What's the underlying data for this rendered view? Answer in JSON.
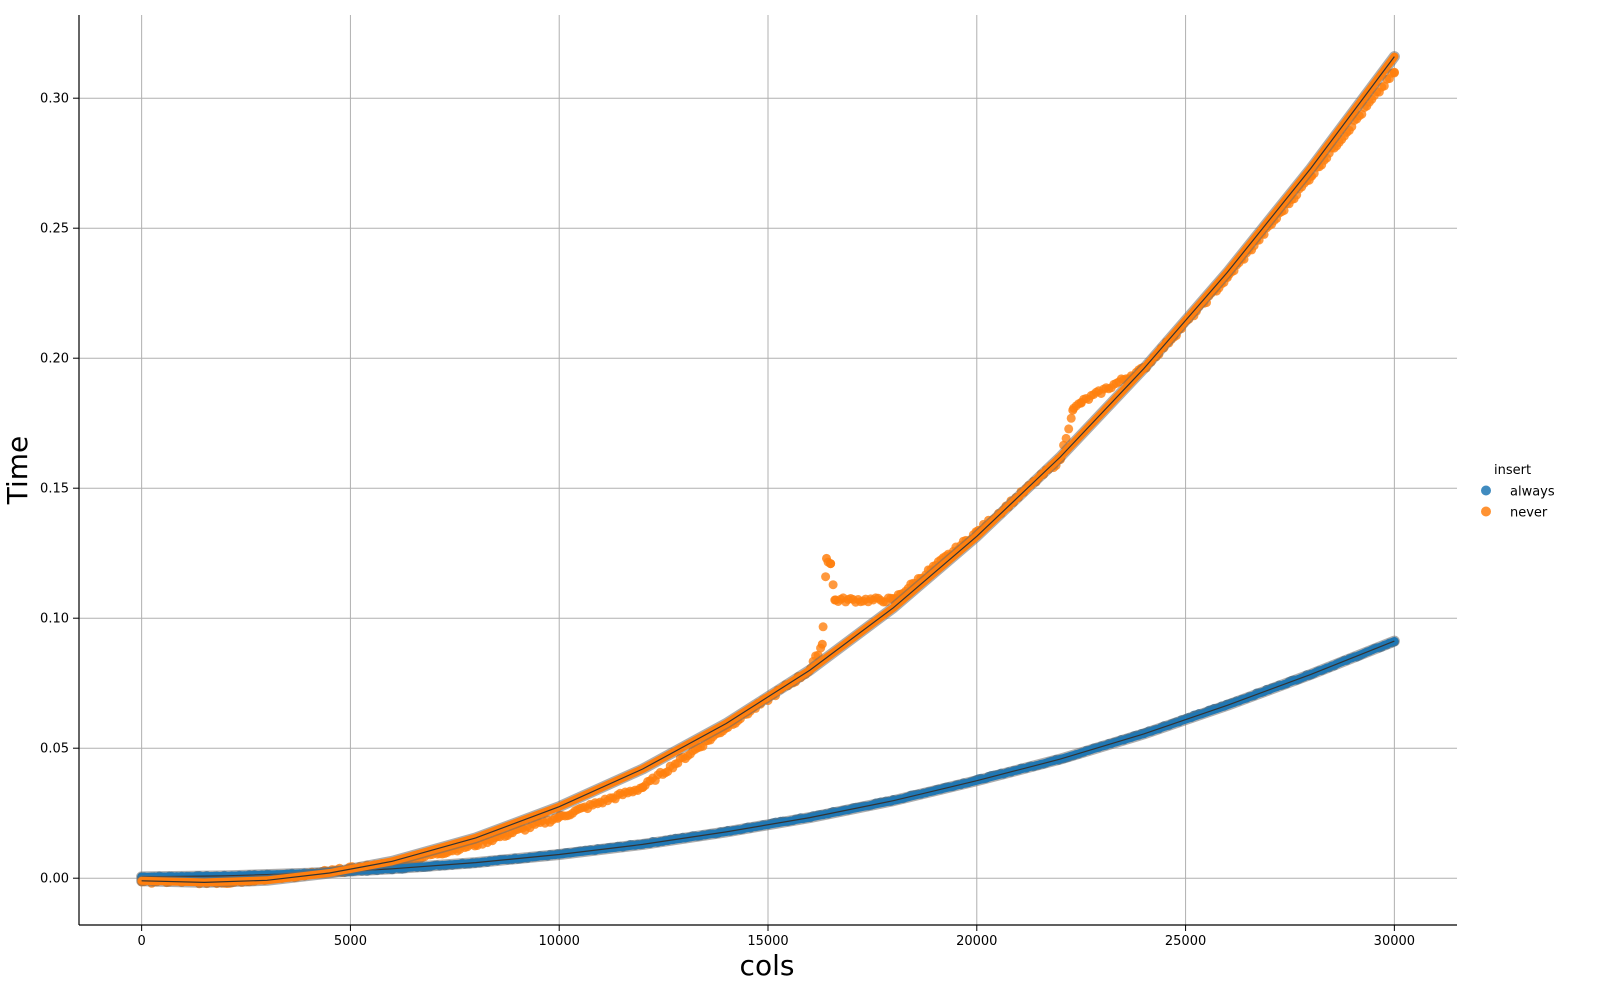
{
  "chart_data": {
    "type": "scatter",
    "xlabel": "cols",
    "ylabel": "Time",
    "xlim": [
      -1500,
      31500
    ],
    "ylim": [
      -0.018,
      0.332
    ],
    "x_ticks": [
      0,
      5000,
      10000,
      15000,
      20000,
      25000,
      30000
    ],
    "x_tick_labels": [
      "0",
      "5000",
      "10000",
      "15000",
      "20000",
      "25000",
      "30000"
    ],
    "y_ticks": [
      0.0,
      0.05,
      0.1,
      0.15,
      0.2,
      0.25,
      0.3
    ],
    "y_tick_labels": [
      "0.00",
      "0.05",
      "0.10",
      "0.15",
      "0.20",
      "0.25",
      "0.30"
    ],
    "grid": true,
    "legend": {
      "title": "insert",
      "placement": "right",
      "entries": [
        {
          "label": "always",
          "color": "#1f77b4"
        },
        {
          "label": "never",
          "color": "#ff7f0e"
        }
      ]
    },
    "series": [
      {
        "name": "always",
        "color": "#1f77b4",
        "x": [
          0,
          2000,
          4000,
          6000,
          8000,
          10000,
          12000,
          14000,
          16000,
          18000,
          20000,
          22000,
          24000,
          26000,
          28000,
          30000
        ],
        "y": [
          0.0005,
          0.0008,
          0.0018,
          0.0035,
          0.006,
          0.0092,
          0.0132,
          0.018,
          0.0235,
          0.03,
          0.0378,
          0.0458,
          0.0558,
          0.0668,
          0.0785,
          0.091
        ]
      },
      {
        "name": "never",
        "color": "#ff7f0e",
        "x": [
          0,
          2000,
          4000,
          6000,
          8000,
          10000,
          12000,
          14000,
          16000,
          16300,
          16400,
          16500,
          16600,
          18000,
          20000,
          22000,
          22300,
          22500,
          24000,
          26000,
          28000,
          30000
        ],
        "y": [
          -0.001,
          -0.0015,
          0.0015,
          0.0055,
          0.013,
          0.0235,
          0.035,
          0.058,
          0.08,
          0.09,
          0.123,
          0.121,
          0.107,
          0.107,
          0.133,
          0.161,
          0.18,
          0.183,
          0.196,
          0.231,
          0.27,
          0.31
        ]
      }
    ],
    "fit_lines": [
      {
        "series": "always",
        "x": [
          0,
          2000,
          4000,
          6000,
          8000,
          10000,
          12000,
          14000,
          16000,
          18000,
          20000,
          22000,
          24000,
          26000,
          28000,
          30000
        ],
        "y": [
          0.0005,
          0.0009,
          0.0019,
          0.0036,
          0.006,
          0.0091,
          0.013,
          0.0178,
          0.0233,
          0.0298,
          0.0375,
          0.0458,
          0.0555,
          0.0665,
          0.0784,
          0.0912
        ]
      },
      {
        "series": "never",
        "x": [
          0,
          1500,
          3000,
          4500,
          6000,
          8000,
          10000,
          12000,
          14000,
          16000,
          18000,
          20000,
          22000,
          24000,
          26000,
          28000,
          30000
        ],
        "y": [
          -0.001,
          -0.0016,
          -0.0008,
          0.002,
          0.0065,
          0.0155,
          0.0275,
          0.042,
          0.0595,
          0.08,
          0.104,
          0.1315,
          0.162,
          0.196,
          0.233,
          0.273,
          0.316
        ]
      }
    ]
  }
}
